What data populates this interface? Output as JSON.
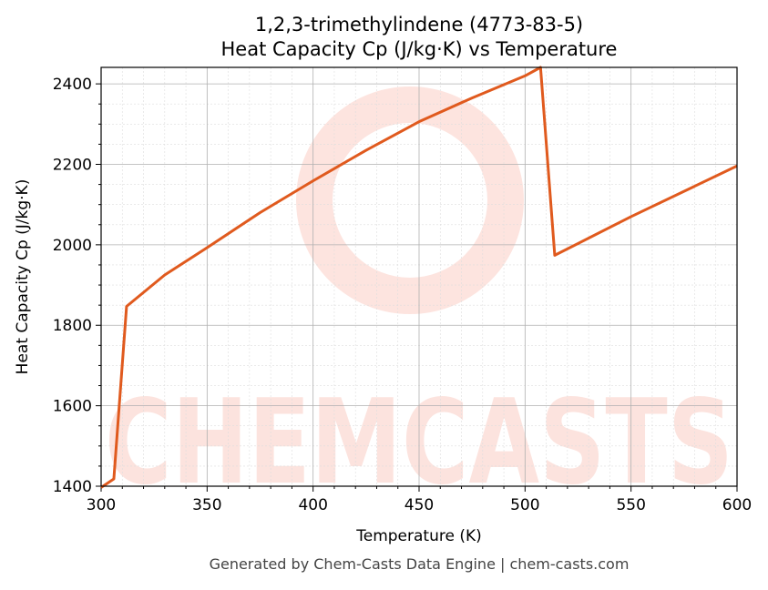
{
  "chart_data": {
    "type": "line",
    "title": "1,2,3-trimethylindene (4773-83-5)",
    "subtitle": "Heat Capacity Cp (J/kg·K) vs Temperature",
    "xlabel": "Temperature (K)",
    "ylabel": "Heat Capacity Cp (J/kg·K)",
    "xlim": [
      300,
      600
    ],
    "ylim": [
      1400,
      2441
    ],
    "xticks": [
      300,
      350,
      400,
      450,
      500,
      550,
      600
    ],
    "yticks": [
      1400,
      1600,
      1800,
      2000,
      2200,
      2400
    ],
    "grid": true,
    "series": [
      {
        "name": "Cp",
        "color": "#e05a1e",
        "x": [
          300,
          306,
          312,
          330,
          350,
          375,
          400,
          425,
          450,
          475,
          500,
          507.3,
          514,
          550,
          600
        ],
        "y": [
          1397,
          1418,
          1847,
          1925,
          1993,
          2080,
          2159,
          2235,
          2306,
          2365,
          2420,
          2441,
          1974,
          2070,
          2196
        ]
      }
    ],
    "watermark": "CHEMCASTS",
    "footer": "Generated by Chem-Casts Data Engine | chem-casts.com"
  }
}
